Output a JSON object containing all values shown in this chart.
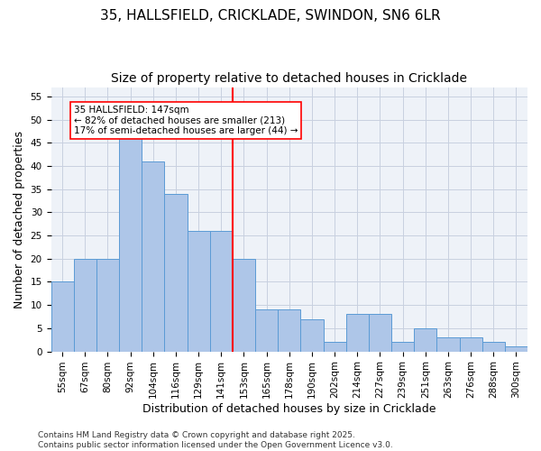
{
  "title1": "35, HALLSFIELD, CRICKLADE, SWINDON, SN6 6LR",
  "title2": "Size of property relative to detached houses in Cricklade",
  "xlabel": "Distribution of detached houses by size in Cricklade",
  "ylabel": "Number of detached properties",
  "bar_values": [
    15,
    20,
    20,
    46,
    41,
    34,
    26,
    26,
    20,
    9,
    9,
    7,
    2,
    8,
    8,
    2,
    5,
    3,
    3,
    2,
    1
  ],
  "xtick_labels": [
    "55sqm",
    "67sqm",
    "80sqm",
    "92sqm",
    "104sqm",
    "116sqm",
    "129sqm",
    "141sqm",
    "153sqm",
    "165sqm",
    "178sqm",
    "190sqm",
    "202sqm",
    "214sqm",
    "227sqm",
    "239sqm",
    "251sqm",
    "263sqm",
    "276sqm",
    "288sqm",
    "300sqm"
  ],
  "bar_color": "#aec6e8",
  "bar_edge_color": "#5b9bd5",
  "vline_x": 7.5,
  "vline_color": "red",
  "annotation_title": "35 HALLSFIELD: 147sqm",
  "annotation_line1": "← 82% of detached houses are smaller (213)",
  "annotation_line2": "17% of semi-detached houses are larger (44) →",
  "annotation_box_color": "white",
  "annotation_box_edge": "red",
  "ylim": [
    0,
    57
  ],
  "yticks": [
    0,
    5,
    10,
    15,
    20,
    25,
    30,
    35,
    40,
    45,
    50,
    55
  ],
  "grid_color": "#c8d0e0",
  "bg_color": "#eef2f8",
  "footer": "Contains HM Land Registry data © Crown copyright and database right 2025.\nContains public sector information licensed under the Open Government Licence v3.0.",
  "title1_fontsize": 11,
  "title2_fontsize": 10,
  "xlabel_fontsize": 9,
  "ylabel_fontsize": 9,
  "tick_fontsize": 7.5,
  "footer_fontsize": 6.5
}
